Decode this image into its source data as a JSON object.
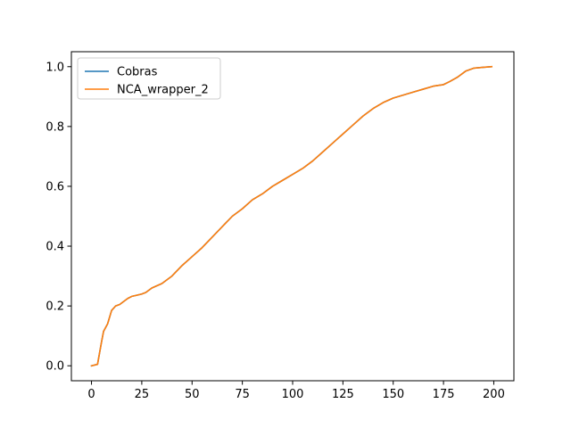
{
  "chart_data": {
    "type": "line",
    "title": "",
    "xlabel": "",
    "ylabel": "",
    "xlim": [
      -10,
      210
    ],
    "ylim": [
      -0.05,
      1.05
    ],
    "xticks": [
      0,
      25,
      50,
      75,
      100,
      125,
      150,
      175,
      200
    ],
    "yticks": [
      0.0,
      0.2,
      0.4,
      0.6,
      0.8,
      1.0
    ],
    "xtick_labels": [
      "0",
      "25",
      "50",
      "75",
      "100",
      "125",
      "150",
      "175",
      "200"
    ],
    "ytick_labels": [
      "0.0",
      "0.2",
      "0.4",
      "0.6",
      "0.8",
      "1.0"
    ],
    "grid": false,
    "legend": {
      "placement": "top-left"
    },
    "series": [
      {
        "name": "Cobras",
        "color": "#1f77b4",
        "x": [
          0,
          3,
          5,
          6,
          8,
          10,
          12,
          14,
          16,
          18,
          20,
          22,
          25,
          27,
          30,
          35,
          40,
          45,
          50,
          55,
          60,
          65,
          70,
          75,
          80,
          85,
          90,
          95,
          100,
          105,
          110,
          115,
          120,
          125,
          130,
          135,
          140,
          145,
          150,
          155,
          160,
          165,
          170,
          175,
          178,
          182,
          186,
          190,
          195,
          199
        ],
        "y": [
          0.0,
          0.005,
          0.08,
          0.115,
          0.14,
          0.185,
          0.2,
          0.205,
          0.215,
          0.225,
          0.232,
          0.235,
          0.24,
          0.245,
          0.26,
          0.275,
          0.3,
          0.335,
          0.365,
          0.395,
          0.43,
          0.465,
          0.5,
          0.525,
          0.555,
          0.575,
          0.6,
          0.62,
          0.64,
          0.66,
          0.685,
          0.715,
          0.745,
          0.775,
          0.805,
          0.835,
          0.86,
          0.88,
          0.895,
          0.905,
          0.915,
          0.925,
          0.935,
          0.94,
          0.95,
          0.965,
          0.985,
          0.995,
          0.998,
          1.0
        ]
      },
      {
        "name": "NCA_wrapper_2",
        "color": "#ff7f0e",
        "x": [
          0,
          3,
          5,
          6,
          8,
          10,
          12,
          14,
          16,
          18,
          20,
          22,
          25,
          27,
          30,
          35,
          40,
          45,
          50,
          55,
          60,
          65,
          70,
          75,
          80,
          85,
          90,
          95,
          100,
          105,
          110,
          115,
          120,
          125,
          130,
          135,
          140,
          145,
          150,
          155,
          160,
          165,
          170,
          175,
          178,
          182,
          186,
          190,
          195,
          199
        ],
        "y": [
          0.0,
          0.005,
          0.08,
          0.115,
          0.14,
          0.185,
          0.2,
          0.205,
          0.215,
          0.225,
          0.232,
          0.235,
          0.24,
          0.245,
          0.26,
          0.275,
          0.3,
          0.335,
          0.365,
          0.395,
          0.43,
          0.465,
          0.5,
          0.525,
          0.555,
          0.575,
          0.6,
          0.62,
          0.64,
          0.66,
          0.685,
          0.715,
          0.745,
          0.775,
          0.805,
          0.835,
          0.86,
          0.88,
          0.895,
          0.905,
          0.915,
          0.925,
          0.935,
          0.94,
          0.95,
          0.965,
          0.985,
          0.995,
          0.998,
          1.0
        ]
      }
    ]
  }
}
